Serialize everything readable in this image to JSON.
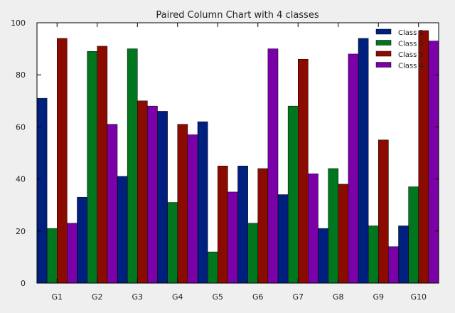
{
  "chart_data": {
    "type": "bar",
    "title": "Paired Column Chart with 4 classes",
    "xlabel": "",
    "ylabel": "",
    "categories": [
      "G1",
      "G2",
      "G3",
      "G4",
      "G5",
      "G6",
      "G7",
      "G8",
      "G9",
      "G10"
    ],
    "series": [
      {
        "name": "Class 1",
        "color": "#00207f",
        "values": [
          71,
          33,
          41,
          66,
          62,
          45,
          34,
          21,
          94,
          22
        ]
      },
      {
        "name": "Class 2",
        "color": "#00761f",
        "values": [
          21,
          89,
          90,
          31,
          12,
          23,
          68,
          44,
          22,
          37
        ]
      },
      {
        "name": "Class 3",
        "color": "#8c0b00",
        "values": [
          94,
          91,
          70,
          61,
          45,
          44,
          86,
          38,
          55,
          97
        ]
      },
      {
        "name": "Class 4",
        "color": "#7a00a8",
        "values": [
          23,
          61,
          68,
          57,
          35,
          90,
          42,
          88,
          14,
          93
        ]
      }
    ],
    "ylim": [
      0,
      100
    ],
    "yticks": [
      0,
      20,
      40,
      60,
      80,
      100
    ],
    "grid": false,
    "legend_position": "top-right"
  }
}
